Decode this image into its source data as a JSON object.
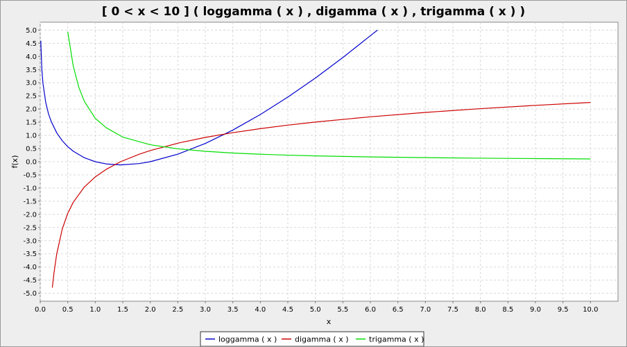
{
  "chart_data": {
    "type": "line",
    "title": "[ 0 < x < 10  ]  ( loggamma ( x ) , digamma ( x ) , trigamma ( x ) )",
    "xlabel": "x",
    "ylabel": "f(x)",
    "xlim": [
      0.0,
      10.5
    ],
    "ylim": [
      -5.3,
      5.3
    ],
    "x_ticks": [
      "0.0",
      "0.5",
      "1.0",
      "1.5",
      "2.0",
      "2.5",
      "3.0",
      "3.5",
      "4.0",
      "4.5",
      "5.0",
      "5.5",
      "6.0",
      "6.5",
      "7.0",
      "7.5",
      "8.0",
      "8.5",
      "9.0",
      "9.5",
      "10.0"
    ],
    "y_ticks": [
      "5.0",
      "4.5",
      "4.0",
      "3.5",
      "3.0",
      "2.5",
      "2.0",
      "1.5",
      "1.0",
      "0.5",
      "0.0",
      "-0.5",
      "-1.0",
      "-1.5",
      "-2.0",
      "-2.5",
      "-3.0",
      "-3.5",
      "-4.0",
      "-4.5",
      "-5.0"
    ],
    "grid": true,
    "legend_position": "bottom",
    "series": [
      {
        "name": "loggamma ( x )",
        "color": "#0000cc",
        "x": [
          0.01,
          0.03,
          0.05,
          0.1,
          0.15,
          0.2,
          0.3,
          0.4,
          0.5,
          0.6,
          0.8,
          1.0,
          1.2,
          1.4616,
          1.8,
          2.0,
          2.5,
          3.0,
          3.5,
          4.0,
          4.5,
          5.0,
          5.5,
          6.0,
          6.13
        ],
        "values": [
          4.599,
          3.488,
          2.971,
          2.253,
          1.822,
          1.524,
          1.096,
          0.797,
          0.572,
          0.399,
          0.152,
          0.0,
          -0.085,
          -0.121,
          -0.071,
          0.0,
          0.285,
          0.693,
          1.201,
          1.792,
          2.454,
          3.178,
          3.958,
          4.787,
          5.0
        ]
      },
      {
        "name": "digamma ( x )",
        "color": "#cc0000",
        "x": [
          0.22,
          0.25,
          0.3,
          0.4,
          0.5,
          0.6,
          0.8,
          1.0,
          1.2,
          1.46,
          1.8,
          2.0,
          2.5,
          3.0,
          3.5,
          4.0,
          4.5,
          5.0,
          6.0,
          7.0,
          8.0,
          9.0,
          10.0
        ],
        "values": [
          -4.785,
          -4.227,
          -3.502,
          -2.561,
          -1.964,
          -1.541,
          -0.965,
          -0.577,
          -0.289,
          0.0,
          0.285,
          0.423,
          0.703,
          0.923,
          1.103,
          1.256,
          1.389,
          1.506,
          1.706,
          1.872,
          2.016,
          2.141,
          2.252
        ]
      },
      {
        "name": "trigamma ( x )",
        "color": "#00dd00",
        "x": [
          0.5,
          0.6,
          0.7,
          0.8,
          1.0,
          1.2,
          1.5,
          2.0,
          2.5,
          3.0,
          3.5,
          4.0,
          4.5,
          5.0,
          6.0,
          7.0,
          8.0,
          9.0,
          10.0
        ],
        "values": [
          4.935,
          3.636,
          2.834,
          2.299,
          1.645,
          1.29,
          0.935,
          0.645,
          0.49,
          0.395,
          0.33,
          0.284,
          0.249,
          0.221,
          0.181,
          0.154,
          0.133,
          0.118,
          0.105
        ]
      }
    ]
  }
}
